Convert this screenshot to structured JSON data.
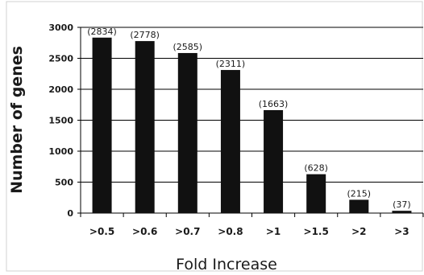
{
  "chart_data": {
    "type": "bar",
    "title": "",
    "xlabel": "Fold Increase",
    "ylabel": "Number of genes",
    "categories": [
      ">0.5",
      ">0.6",
      ">0.7",
      ">0.8",
      ">1",
      ">1.5",
      ">2",
      ">3"
    ],
    "values": [
      2834,
      2778,
      2585,
      2311,
      1663,
      628,
      215,
      37
    ],
    "data_labels": [
      "(2834)",
      "(2778)",
      "(2585)",
      "(2311)",
      "(1663)",
      "(628)",
      "(215)",
      "(37)"
    ],
    "yticks": [
      0,
      500,
      1000,
      1500,
      2000,
      2500,
      3000
    ],
    "ytick_labels": [
      "0",
      "500",
      "1000",
      "1500",
      "2000",
      "2500",
      "3000"
    ],
    "ylim": [
      0,
      3000
    ],
    "grid": "horizontal",
    "legend": "none",
    "bar_color": "#111111",
    "grid_color": "#000000",
    "border_color": "#d0d0d0"
  }
}
